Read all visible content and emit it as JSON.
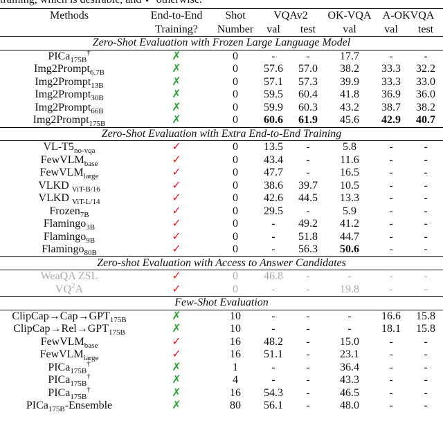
{
  "caption": "training, which is desirable, and ✓ otherwise.",
  "header": {
    "methods": "Methods",
    "e2e": [
      "End-to-End",
      "Training?"
    ],
    "shot": [
      "Shot",
      "Number"
    ],
    "groups": [
      {
        "label": "VQAv2",
        "cols": [
          "val",
          "test"
        ]
      },
      {
        "label": "OK-VQA",
        "cols": [
          "val"
        ]
      },
      {
        "label": "A-OKVQA",
        "cols": [
          "val",
          "test"
        ]
      }
    ]
  },
  "sections": [
    {
      "title": "Zero-Shot Evaluation with Frozen Large Language Model",
      "rows": [
        {
          "name": "PICa",
          "sub": "175B",
          "sup": "†",
          "e2e": "✗",
          "shot": "0",
          "cells": [
            "-",
            "-",
            "17.7",
            "-",
            "-"
          ]
        },
        {
          "name": "Img2Prompt",
          "sub": "6.7B",
          "e2e": "✗",
          "shot": "0",
          "cells": [
            "57.6",
            "57.0",
            "38.2",
            "33.3",
            "32.2"
          ]
        },
        {
          "name": "Img2Prompt",
          "sub": "13B",
          "e2e": "✗",
          "shot": "0",
          "cells": [
            "57.1",
            "57.3",
            "39.9",
            "33.3",
            "33.0"
          ]
        },
        {
          "name": "Img2Prompt",
          "sub": "30B",
          "e2e": "✗",
          "shot": "0",
          "cells": [
            "59.5",
            "60.4",
            "41.8",
            "36.9",
            "36.0"
          ]
        },
        {
          "name": "Img2Prompt",
          "sub": "66B",
          "e2e": "✗",
          "shot": "0",
          "cells": [
            "59.9",
            "60.3",
            "43.2",
            "38.7",
            "38.2"
          ]
        },
        {
          "name": "Img2Prompt",
          "sub": "175B",
          "e2e": "✗",
          "shot": "0",
          "cells": [
            "60.6",
            "61.9",
            "45.6",
            "42.9",
            "40.7"
          ],
          "bold": [
            0,
            1,
            3,
            4
          ]
        }
      ]
    },
    {
      "title": "Zero-Shot Evaluation with Extra End-to-End Training",
      "rows": [
        {
          "name": "VL-T5",
          "sub": "no-vqa",
          "e2e": "✓",
          "shot": "0",
          "cells": [
            "13.5",
            "-",
            "5.8",
            "-",
            "-"
          ]
        },
        {
          "name": "FewVLM",
          "sub": "base",
          "e2e": "✓",
          "shot": "0",
          "cells": [
            "43.4",
            "-",
            "11.6",
            "-",
            "-"
          ]
        },
        {
          "name": "FewVLM",
          "sub": "large",
          "e2e": "✓",
          "shot": "0",
          "cells": [
            "47.7",
            "-",
            "16.5",
            "-",
            "-"
          ]
        },
        {
          "name": "VLKD ",
          "sub": "ViT-B/16",
          "e2e": "✓",
          "shot": "0",
          "cells": [
            "38.6",
            "39.7",
            "10.5",
            "-",
            "-"
          ]
        },
        {
          "name": "VLKD ",
          "sub": "ViT-L/14",
          "e2e": "✓",
          "shot": "0",
          "cells": [
            "42.6",
            "44.5",
            "13.3",
            "-",
            "-"
          ]
        },
        {
          "name": "Frozen",
          "sub": "7B",
          "e2e": "✓",
          "shot": "0",
          "cells": [
            "29.5",
            "-",
            "5.9",
            "-",
            "-"
          ]
        },
        {
          "name": "Flamingo",
          "sub": "3B",
          "e2e": "✓",
          "shot": "0",
          "cells": [
            "-",
            "49.2",
            "41.2",
            "-",
            "-"
          ]
        },
        {
          "name": "Flamingo",
          "sub": "9B",
          "e2e": "✓",
          "shot": "0",
          "cells": [
            "-",
            "51.8",
            "44.7",
            "-",
            "-"
          ]
        },
        {
          "name": "Flamingo",
          "sub": "80B",
          "e2e": "✓",
          "shot": "0",
          "cells": [
            "-",
            "56.3",
            "50.6",
            "-",
            "-"
          ],
          "bold": [
            2
          ]
        }
      ]
    },
    {
      "title": "Zero-shot Evaluation with Access to Answer Candidates",
      "rows": [
        {
          "name": "WeaQA ZSL",
          "e2e": "✓",
          "shot": "0",
          "cells": [
            "46.8",
            "-",
            "-",
            "-",
            "-"
          ],
          "muted": true
        },
        {
          "name": "VQ",
          "sup": "2",
          "tail": "A",
          "e2e": "✓",
          "shot": "0",
          "cells": [
            "-",
            "-",
            "19.8",
            "-",
            "-"
          ],
          "muted": true
        }
      ]
    },
    {
      "title": "Few-Shot Evaluation",
      "rows": [
        {
          "name": "ClipCap→Cap→GPT",
          "sub": "175B",
          "e2e": "✗",
          "shot": "10",
          "cells": [
            "-",
            "-",
            "-",
            "16.6",
            "15.8"
          ]
        },
        {
          "name": "ClipCap→Rel→GPT",
          "sub": "175B",
          "e2e": "✗",
          "shot": "10",
          "cells": [
            "-",
            "-",
            "-",
            "18.1",
            "15.8"
          ]
        },
        {
          "name": "FewVLM",
          "sub": "base",
          "e2e": "✓",
          "shot": "16",
          "cells": [
            "48.2",
            "-",
            "15.0",
            "-",
            "-"
          ]
        },
        {
          "name": "FewVLM",
          "sub": "large",
          "e2e": "✓",
          "shot": "16",
          "cells": [
            "51.1",
            "-",
            "23.1",
            "-",
            "-"
          ]
        },
        {
          "name": "PICa",
          "sub": "175B",
          "sup": "†",
          "e2e": "✗",
          "shot": "1",
          "cells": [
            "-",
            "-",
            "36.4",
            "-",
            "-"
          ]
        },
        {
          "name": "PICa",
          "sub": "175B",
          "sup": "†",
          "e2e": "✗",
          "shot": "4",
          "cells": [
            "-",
            "-",
            "43.3",
            "-",
            "-"
          ]
        },
        {
          "name": "PICa",
          "sub": "175B",
          "sup": "†",
          "e2e": "✗",
          "shot": "16",
          "cells": [
            "54.3",
            "-",
            "46.5",
            "-",
            "-"
          ]
        },
        {
          "name": "PICa",
          "sub": "175B",
          "tail": "-Ensemble",
          "e2e": "✗",
          "shot": "80",
          "cells": [
            "56.1",
            "-",
            "48.0",
            "-",
            "-"
          ]
        }
      ]
    }
  ]
}
